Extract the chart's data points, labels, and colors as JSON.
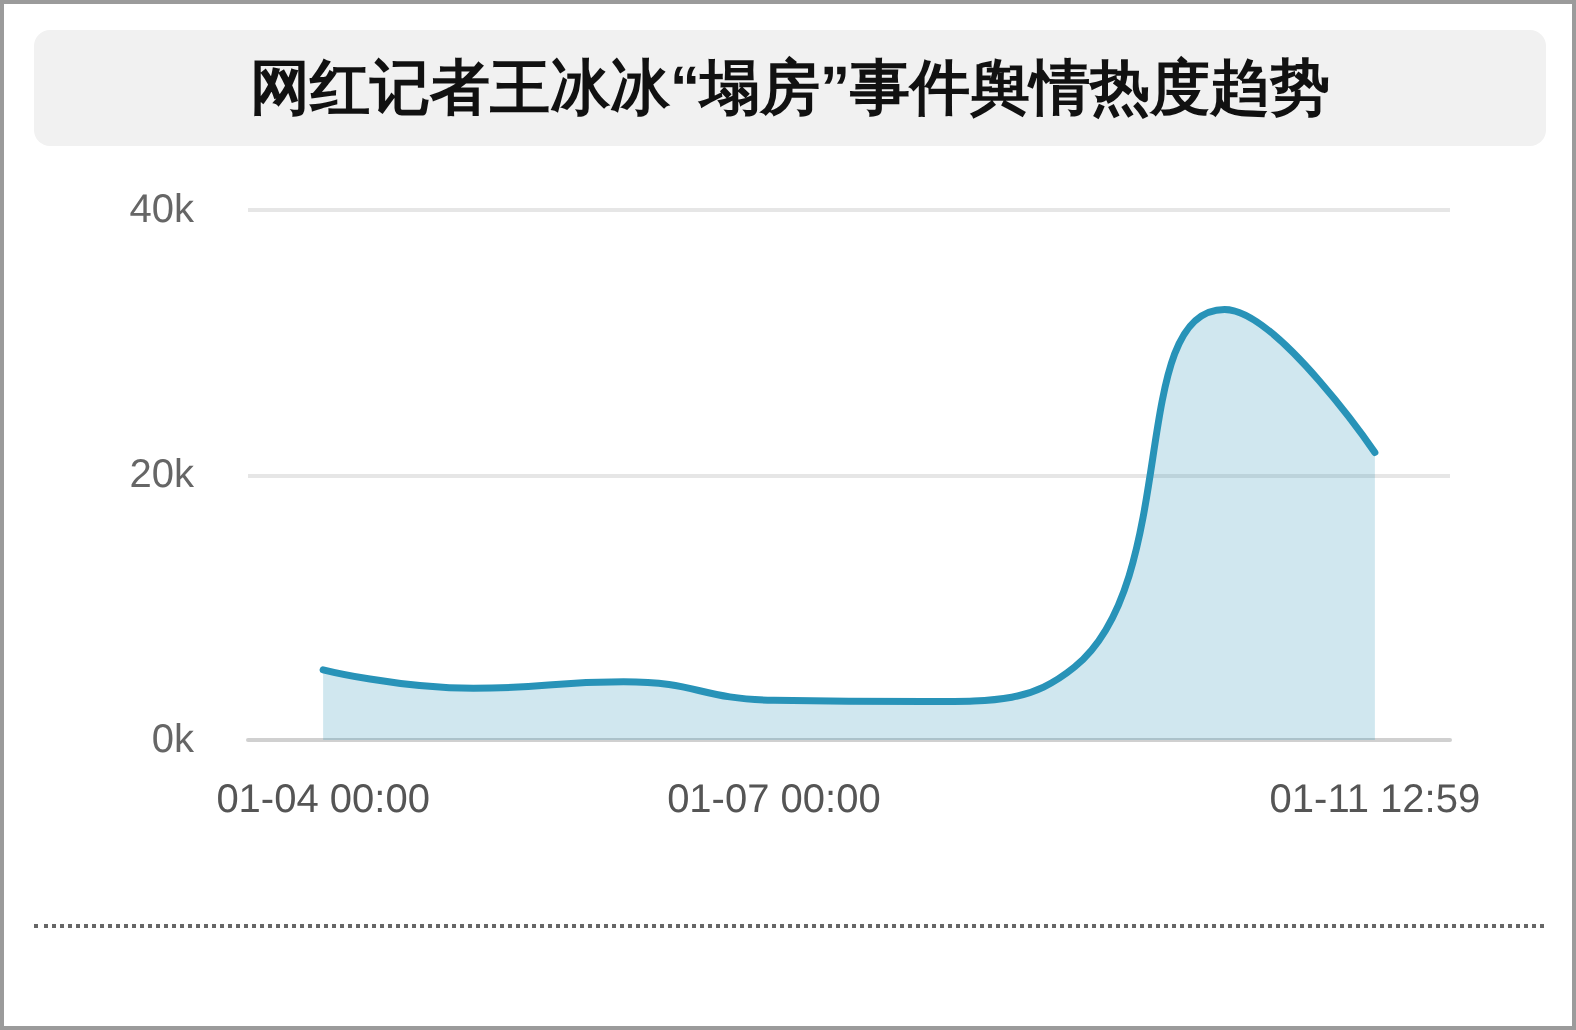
{
  "chart_data": {
    "type": "area",
    "title": "网红记者王冰冰“塌房”事件舆情热度趋势",
    "categories": [
      "01-04 00:00",
      null,
      null,
      "01-07 00:00",
      null,
      null,
      null,
      "01-11 12:59"
    ],
    "values": [
      5300,
      3900,
      4400,
      3000,
      2900,
      5500,
      32500,
      21700
    ],
    "color": "#2893b8",
    "ylim": [
      0,
      40000
    ],
    "yticks": [
      {
        "value": 0,
        "label": "0k"
      },
      {
        "value": 20000,
        "label": "20k"
      },
      {
        "value": 40000,
        "label": "40k"
      }
    ],
    "grid": "y"
  }
}
